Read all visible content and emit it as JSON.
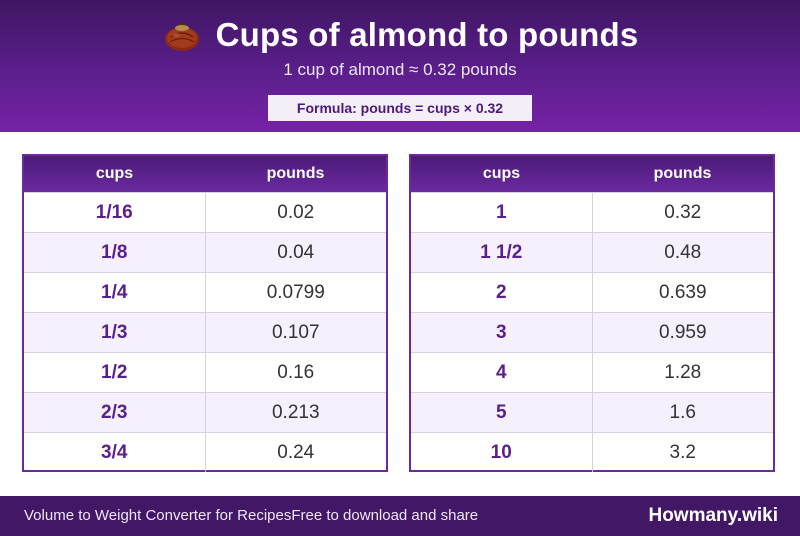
{
  "header": {
    "icon": "almond-icon",
    "title": "Cups of almond to pounds",
    "subtitle": "1 cup of almond ≈ 0.32 pounds",
    "formula": "Formula: pounds = cups × 0.32"
  },
  "tables": {
    "left": {
      "col_cups": "cups",
      "col_pounds": "pounds",
      "rows": [
        {
          "cups": "1/16",
          "pounds": "0.02"
        },
        {
          "cups": "1/8",
          "pounds": "0.04"
        },
        {
          "cups": "1/4",
          "pounds": "0.0799"
        },
        {
          "cups": "1/3",
          "pounds": "0.107"
        },
        {
          "cups": "1/2",
          "pounds": "0.16"
        },
        {
          "cups": "2/3",
          "pounds": "0.213"
        },
        {
          "cups": "3/4",
          "pounds": "0.24"
        }
      ]
    },
    "right": {
      "col_cups": "cups",
      "col_pounds": "pounds",
      "rows": [
        {
          "cups": "1",
          "pounds": "0.32"
        },
        {
          "cups": "1 1/2",
          "pounds": "0.48"
        },
        {
          "cups": "2",
          "pounds": "0.639"
        },
        {
          "cups": "3",
          "pounds": "0.959"
        },
        {
          "cups": "4",
          "pounds": "1.28"
        },
        {
          "cups": "5",
          "pounds": "1.6"
        },
        {
          "cups": "10",
          "pounds": "3.2"
        }
      ]
    }
  },
  "footer": {
    "left_text": "Volume to Weight Converter for Recipes",
    "left_sub": "Free to download and share",
    "brand": "Howmany.wiki"
  },
  "colors": {
    "header_top": "#3f1663",
    "header_bottom": "#7522a6",
    "accent": "#5a1f8c",
    "footer": "#421765"
  }
}
